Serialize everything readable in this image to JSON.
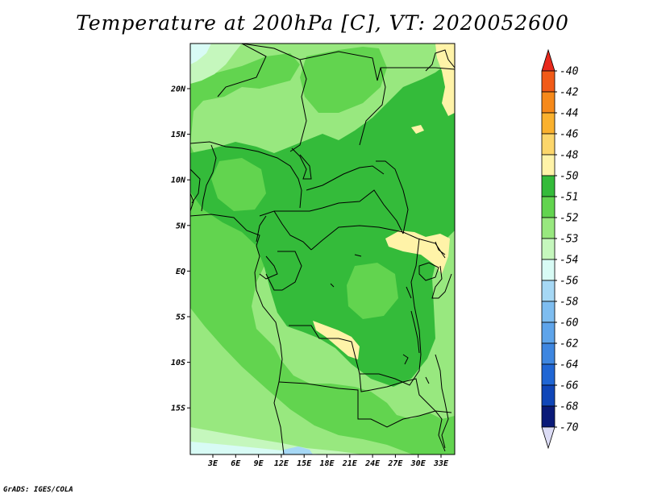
{
  "title": "Temperature at 200hPa [C], VT: 2020052600",
  "credit": "GrADS: IGES/COLA",
  "map": {
    "lat_ticks": [
      "20N",
      "15N",
      "10N",
      "5N",
      "EQ",
      "5S",
      "10S",
      "15S"
    ],
    "lon_ticks": [
      "3E",
      "6E",
      "9E",
      "12E",
      "15E",
      "18E",
      "21E",
      "24E",
      "27E",
      "30E",
      "33E"
    ],
    "colors": {
      "band_51_50": "#fff3a8",
      "band_52_51": "#34bb3a",
      "band_53_52": "#62d44f",
      "band_54_53": "#98e87f",
      "band_56_54": "#c5f7bd",
      "band_58_56": "#d8fbf5",
      "band_60_58": "#a6d8f5",
      "boundaries": "#000000"
    }
  },
  "colorbar": {
    "levels": [
      "-40",
      "-42",
      "-44",
      "-46",
      "-48",
      "-50",
      "-51",
      "-52",
      "-53",
      "-54",
      "-56",
      "-58",
      "-60",
      "-62",
      "-64",
      "-66",
      "-68",
      "-70"
    ],
    "colors": [
      "#e8291c",
      "#f15a17",
      "#f6891a",
      "#fab12e",
      "#fcd66b",
      "#fff3a8",
      "#34bb3a",
      "#62d44f",
      "#98e87f",
      "#c5f7bd",
      "#d8fbf5",
      "#a6d8f5",
      "#7ebdf0",
      "#5ea4ea",
      "#3e86e0",
      "#2066d4",
      "#1046b8",
      "#0a1a78",
      "#dcdcf5"
    ]
  }
}
